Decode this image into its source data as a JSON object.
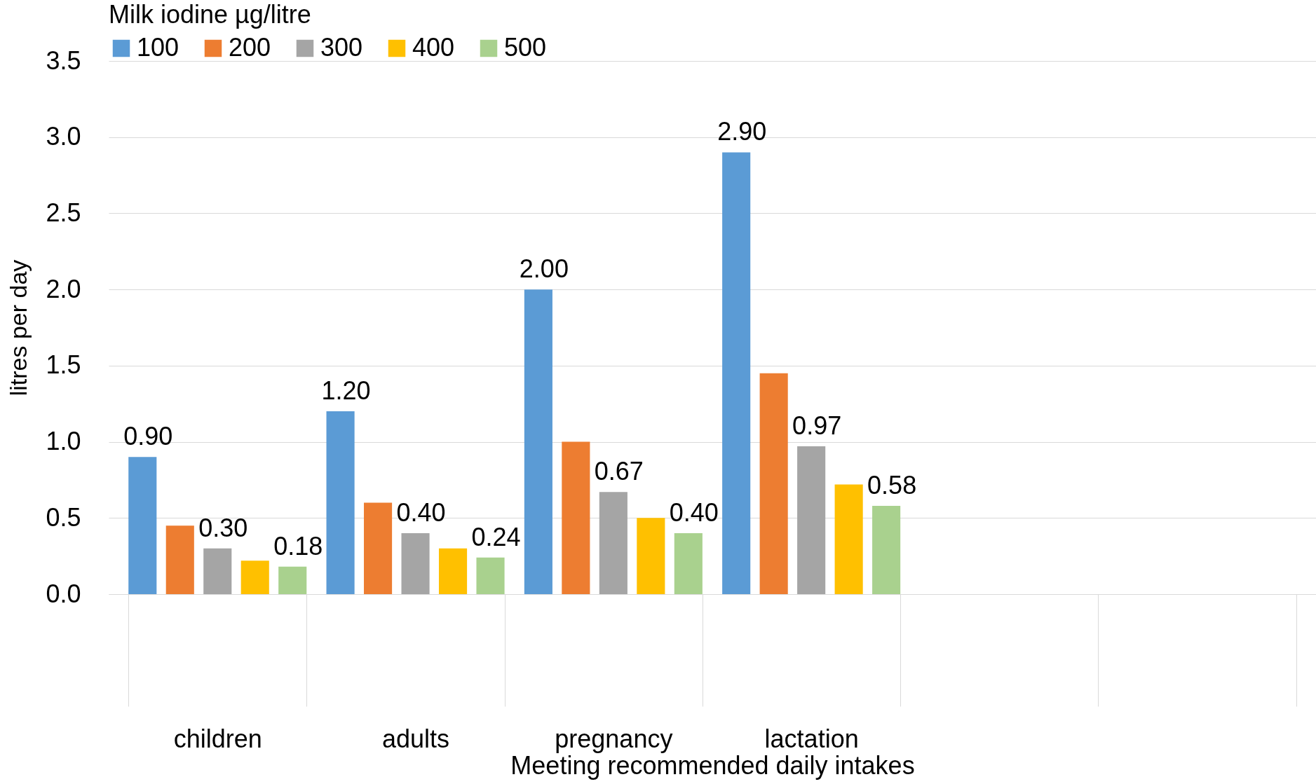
{
  "chart_data": {
    "type": "bar",
    "xlabel": "Meeting recommended daily intakes",
    "ylabel": "litres per day",
    "legend_title": "Milk iodine µg/litre",
    "categories": [
      "children",
      "adults",
      "pregnancy",
      "lactation",
      null,
      null
    ],
    "series": [
      {
        "name": "100",
        "color": "#5b9bd5",
        "values": [
          0.9,
          1.2,
          2.0,
          2.9,
          null,
          null
        ],
        "value_labels": [
          "0.90",
          "1.20",
          "2.00",
          "2.90",
          null,
          null
        ]
      },
      {
        "name": "200",
        "color": "#ed7d31",
        "values": [
          0.45,
          0.6,
          1.0,
          1.45,
          null,
          null
        ]
      },
      {
        "name": "300",
        "color": "#a5a5a5",
        "values": [
          0.3,
          0.4,
          0.67,
          0.97,
          null,
          null
        ],
        "value_labels": [
          "0.30",
          "0.40",
          "0.67",
          "0.97",
          null,
          null
        ]
      },
      {
        "name": "400",
        "color": "#ffc000",
        "values": [
          0.22,
          0.3,
          0.5,
          0.72,
          null,
          null
        ]
      },
      {
        "name": "500",
        "color": "#a9d18e",
        "values": [
          0.18,
          0.24,
          0.4,
          0.58,
          null,
          null
        ],
        "value_labels": [
          "0.18",
          "0.24",
          "0.40",
          "0.58",
          null,
          null
        ]
      }
    ],
    "ylim": [
      0,
      3.5
    ],
    "yticks": [
      {
        "value": 0,
        "label": "0.0"
      },
      {
        "value": 0.5,
        "label": "0.5"
      },
      {
        "value": 1,
        "label": "1.0"
      },
      {
        "value": 1.5,
        "label": "1.5"
      },
      {
        "value": 2,
        "label": "2.0"
      },
      {
        "value": 2.5,
        "label": "2.5"
      },
      {
        "value": 3,
        "label": "3.0"
      },
      {
        "value": 3.5,
        "label": "3.5"
      }
    ],
    "grid": "y",
    "legend": "top"
  }
}
